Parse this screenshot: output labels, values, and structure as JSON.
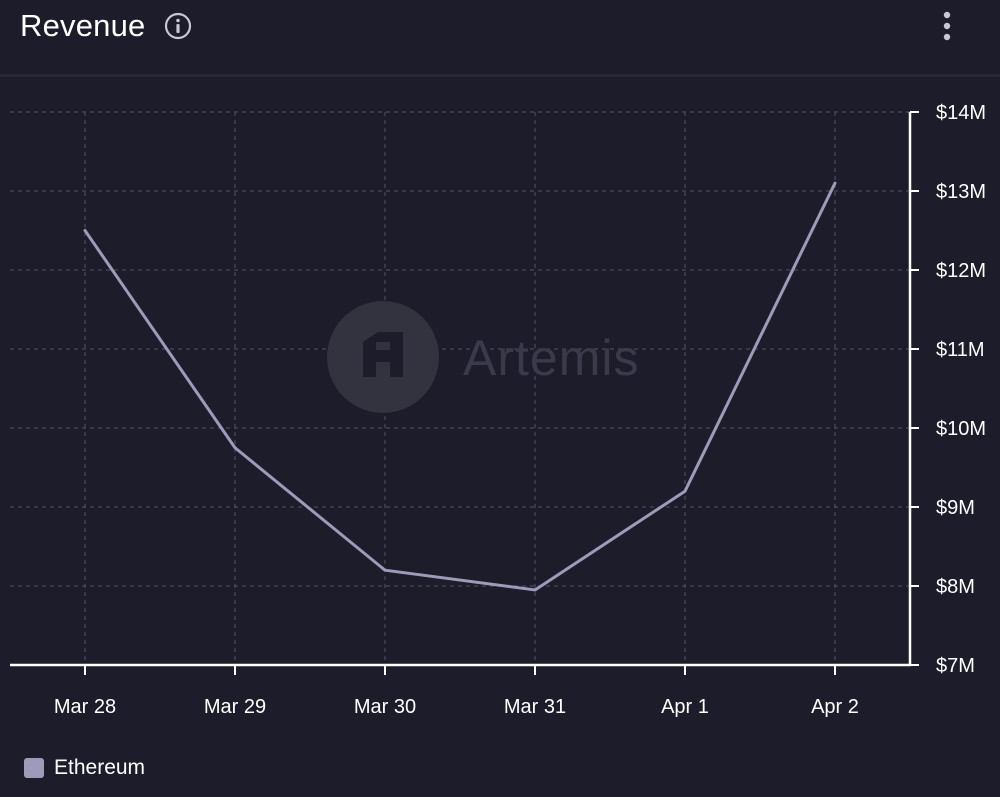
{
  "header": {
    "title": "Revenue",
    "info_icon": "info-icon",
    "menu_icon": "more-vertical-icon"
  },
  "watermark": {
    "text": "Artemis",
    "icon": "artemis-logo-icon"
  },
  "legend": {
    "label": "Ethereum",
    "color": "#9c9cba"
  },
  "colors": {
    "background": "#1c1c2a",
    "line": "#9c9cba",
    "grid": "#4a4a5a",
    "axis": "#ffffff"
  },
  "chart_data": {
    "type": "line",
    "title": "Revenue",
    "categories": [
      "Mar 28",
      "Mar 29",
      "Mar 30",
      "Mar 31",
      "Apr 1",
      "Apr 2"
    ],
    "series": [
      {
        "name": "Ethereum",
        "values": [
          12.5,
          9.75,
          8.2,
          7.95,
          9.2,
          13.1
        ]
      }
    ],
    "yticks": [
      "$7M",
      "$8M",
      "$9M",
      "$10M",
      "$11M",
      "$12M",
      "$13M",
      "$14M"
    ],
    "ylim": [
      7,
      14
    ],
    "yunit": "$M",
    "y_axis_position": "right",
    "grid": true,
    "legend_position": "bottom-left"
  }
}
